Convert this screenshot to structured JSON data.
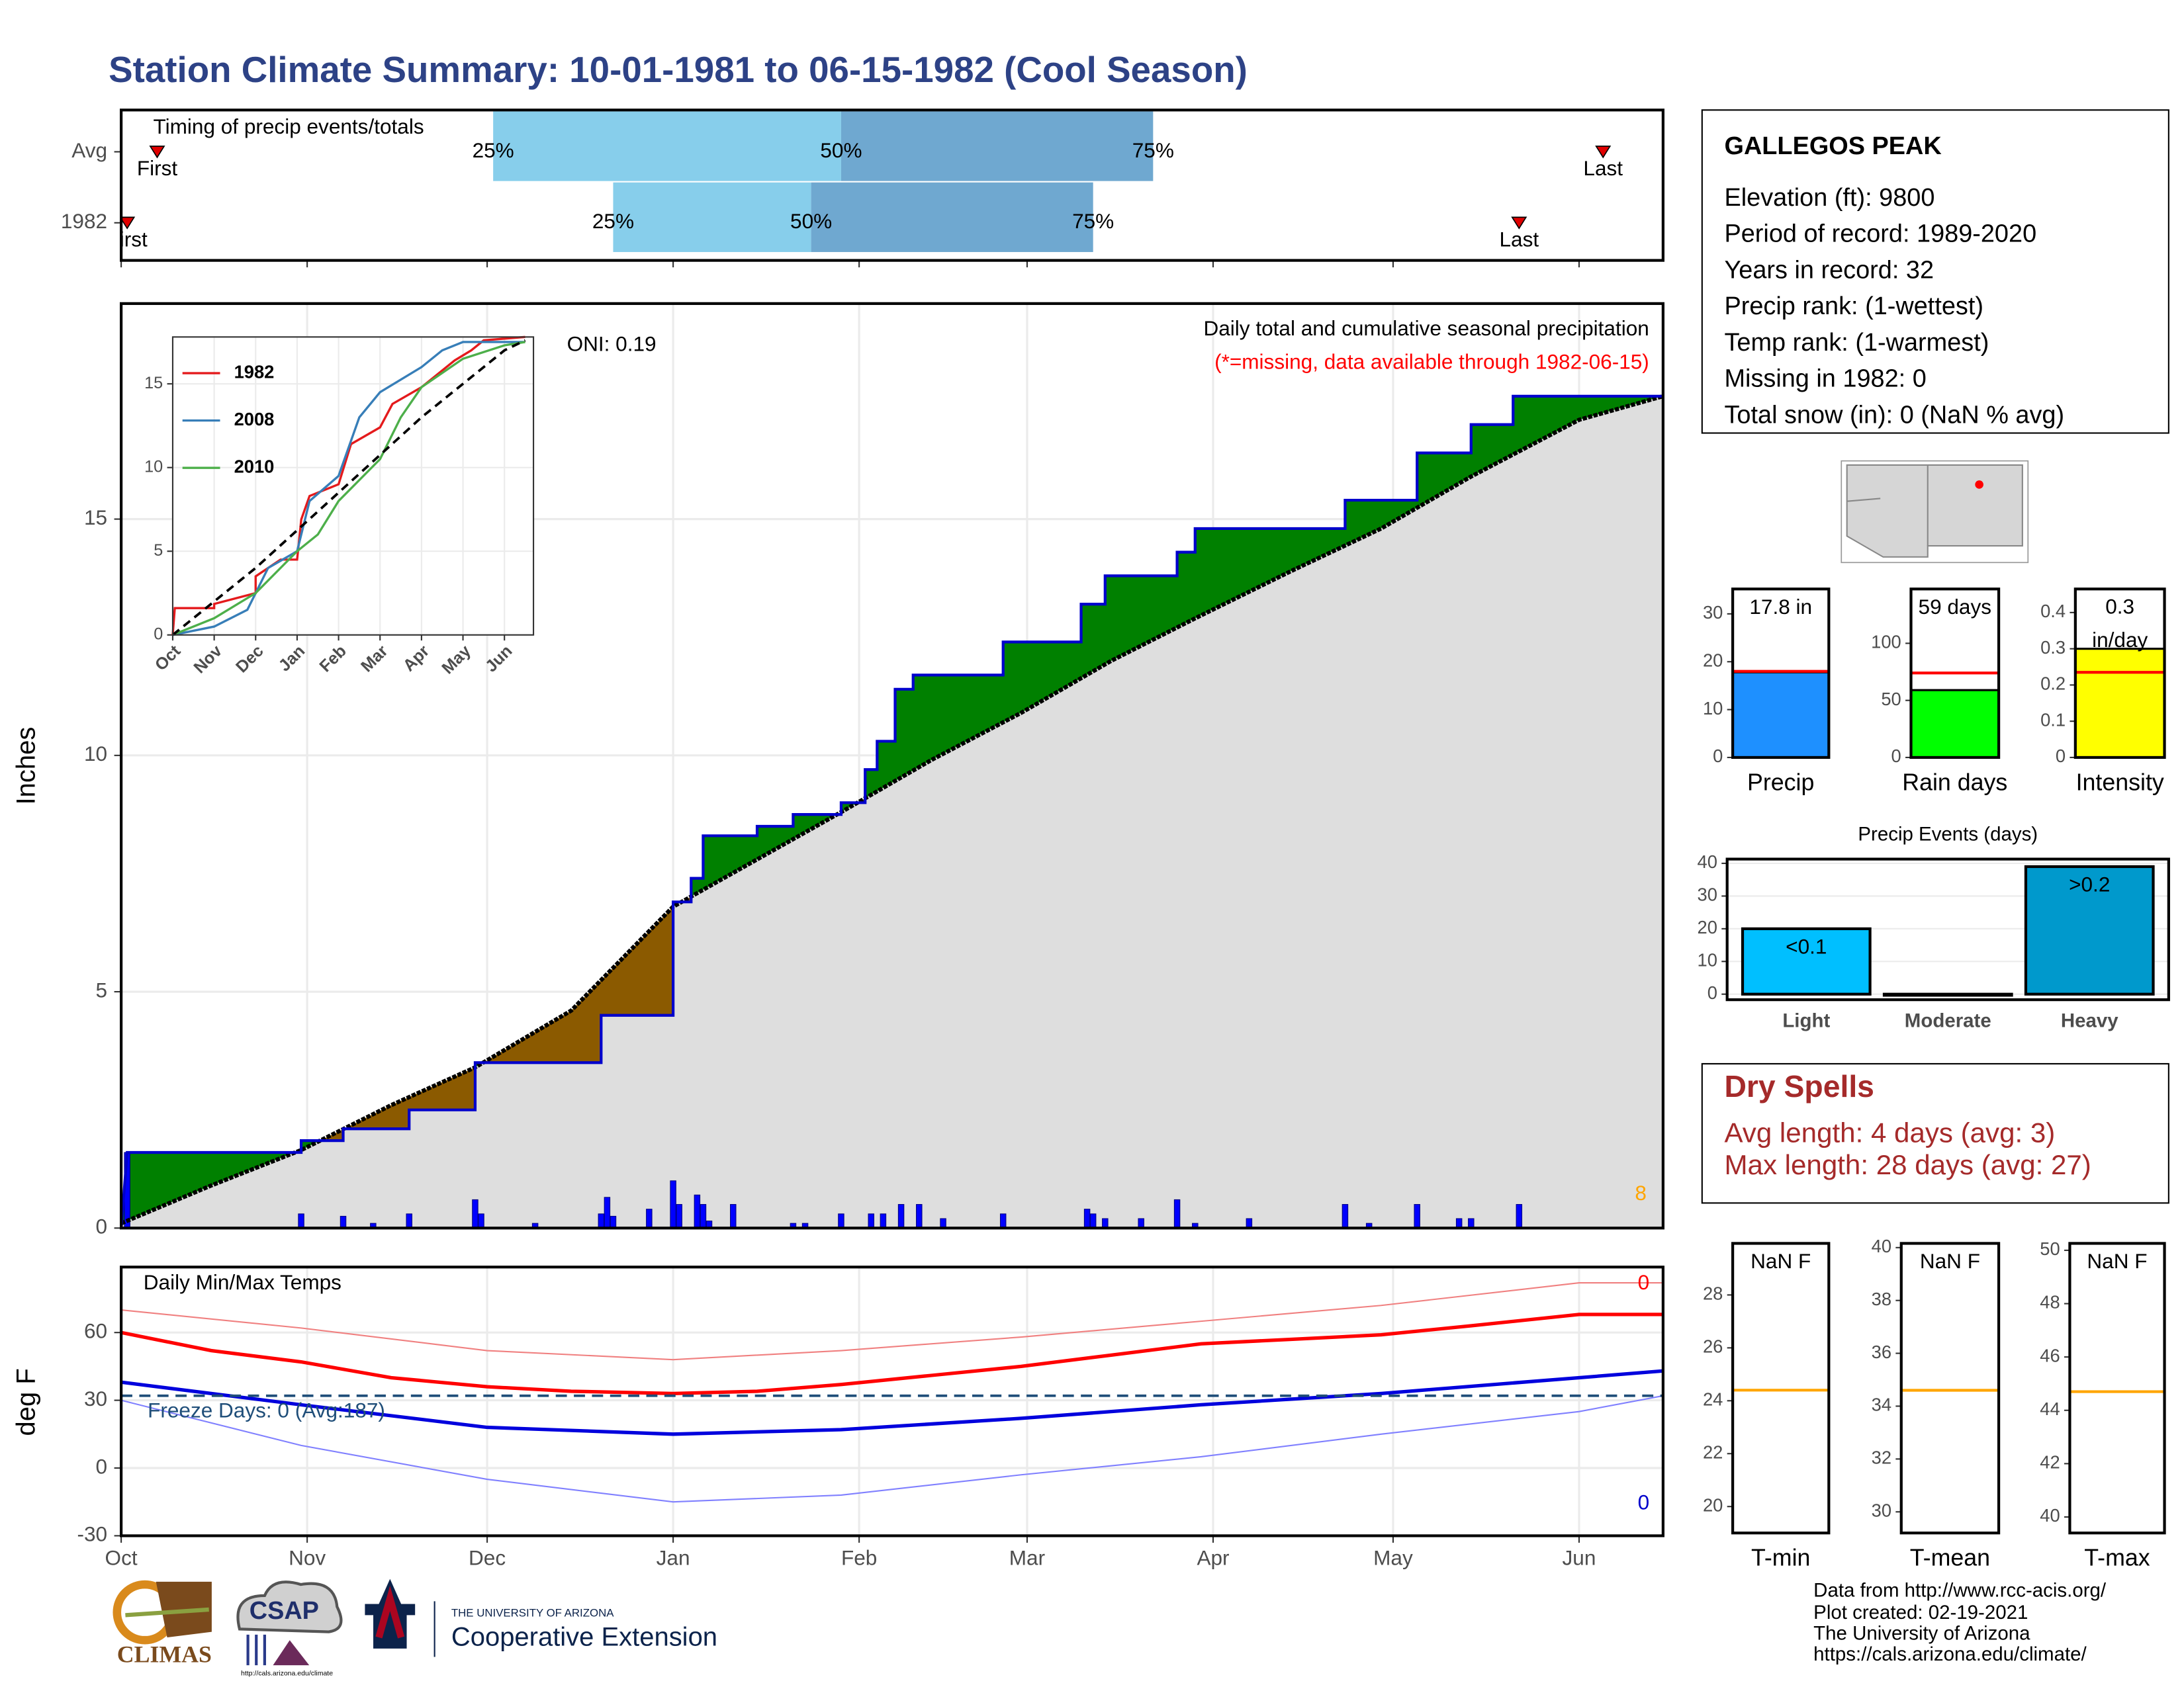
{
  "title": "Station Climate Summary: 10-01-1981 to 06-15-1982 (Cool Season)",
  "chart_data": [
    {
      "type": "timing",
      "title": "Timing of precip events/totals",
      "categories": [
        "Avg",
        "1982"
      ],
      "first": [
        6,
        1
      ],
      "q25": [
        62,
        82
      ],
      "q50": [
        120,
        115
      ],
      "q75": [
        172,
        162
      ],
      "last": [
        247,
        233
      ],
      "first_label": "First",
      "last_label": "Last",
      "quartile_labels": [
        "25%",
        "50%",
        "75%"
      ],
      "colors": [
        "#87ceeb",
        "#6fa8d0"
      ],
      "marker_color": "#e00000",
      "xlim": [
        0,
        257
      ]
    },
    {
      "type": "cumulative",
      "title": "Daily total and cumulative seasonal precipitation",
      "subtitle": "(*=missing, data available through 1982-06-15)",
      "annotation": "ONI: 0.19",
      "count_label": "8",
      "ylabel": "Inches",
      "xlim": [
        0,
        257
      ],
      "ylim": [
        0,
        19.56
      ],
      "yticks": [
        0,
        5,
        10,
        15
      ],
      "grid": true,
      "above_color": "#008000",
      "below_color": "#8b5a00",
      "fill_color": "#dedede",
      "series": [
        {
          "color": "#0000cc",
          "x": [
            0,
            1,
            30,
            30,
            37,
            37,
            48,
            48,
            59,
            59,
            80,
            80,
            92,
            92,
            95,
            95,
            97,
            97,
            106,
            106,
            112,
            112,
            120,
            120,
            124,
            124,
            126,
            126,
            129,
            129,
            132,
            132,
            147,
            147,
            160,
            160,
            164,
            164,
            176,
            176,
            179,
            179,
            204,
            204,
            216,
            216,
            225,
            225,
            232,
            232,
            257
          ],
          "values": [
            0,
            1.6,
            1.6,
            1.85,
            1.85,
            2.1,
            2.1,
            2.5,
            2.5,
            3.5,
            3.5,
            4.5,
            4.5,
            6.9,
            6.9,
            7.4,
            7.4,
            8.3,
            8.3,
            8.5,
            8.5,
            8.75,
            8.75,
            9.0,
            9.0,
            9.7,
            9.7,
            10.3,
            10.3,
            11.4,
            11.4,
            11.7,
            11.7,
            12.4,
            12.4,
            13.2,
            13.2,
            13.8,
            13.8,
            14.3,
            14.3,
            14.8,
            14.8,
            15.4,
            15.4,
            16.4,
            16.4,
            17.0,
            17.0,
            17.6,
            17.6
          ]
        },
        {
          "color": "#000000",
          "x": [
            0,
            15,
            30,
            45,
            59,
            75,
            92,
            106,
            120,
            135,
            150,
            165,
            179,
            195,
            210,
            225,
            243,
            257
          ],
          "values": [
            0.1,
            0.9,
            1.65,
            2.6,
            3.4,
            4.6,
            6.8,
            7.8,
            8.8,
            9.9,
            10.9,
            12.0,
            12.9,
            13.9,
            14.8,
            15.9,
            17.1,
            17.6
          ]
        }
      ],
      "bars": {
        "color": "#0000ff",
        "x": [
          1,
          30,
          37,
          42,
          48,
          59,
          60,
          69,
          80,
          81,
          82,
          88,
          92,
          93,
          96,
          97,
          98,
          102,
          112,
          114,
          120,
          125,
          127,
          130,
          133,
          137,
          147,
          161,
          162,
          164,
          170,
          176,
          179,
          188,
          204,
          208,
          216,
          223,
          225,
          233
        ],
        "values": [
          1.6,
          0.3,
          0.25,
          0.1,
          0.3,
          0.6,
          0.3,
          0.1,
          0.3,
          0.65,
          0.25,
          0.4,
          1.0,
          0.5,
          0.7,
          0.5,
          0.15,
          0.5,
          0.1,
          0.1,
          0.3,
          0.3,
          0.3,
          0.5,
          0.5,
          0.2,
          0.3,
          0.4,
          0.3,
          0.2,
          0.2,
          0.6,
          0.1,
          0.2,
          0.5,
          0.1,
          0.5,
          0.2,
          0.2,
          0.5
        ]
      }
    },
    {
      "type": "line",
      "xlim": [
        0,
        8.7
      ],
      "ylim": [
        0,
        17.8
      ],
      "yticks": [
        0,
        5,
        10,
        15
      ],
      "xticks": [
        {
          "value": 0,
          "label": "Oct"
        },
        {
          "value": 1,
          "label": "Nov"
        },
        {
          "value": 2,
          "label": "Dec"
        },
        {
          "value": 3,
          "label": "Jan"
        },
        {
          "value": 4,
          "label": "Feb"
        },
        {
          "value": 5,
          "label": "Mar"
        },
        {
          "value": 6,
          "label": "Apr"
        },
        {
          "value": 7,
          "label": "May"
        },
        {
          "value": 8,
          "label": "Jun"
        }
      ],
      "grid": true,
      "series": [
        {
          "name": "1982",
          "color": "#e41a1c",
          "x": [
            0,
            0.05,
            1,
            1,
            2,
            2,
            2.6,
            3,
            3.1,
            3.3,
            4,
            4.3,
            5,
            5.3,
            6,
            6.8,
            7.2,
            7.5,
            8.5
          ],
          "values": [
            0,
            1.6,
            1.6,
            1.85,
            2.5,
            3.5,
            4.5,
            4.5,
            6.9,
            8.3,
            9.0,
            11.4,
            12.4,
            13.8,
            14.8,
            16.4,
            17.0,
            17.6,
            17.8
          ]
        },
        {
          "name": "2008",
          "color": "#377eb8",
          "x": [
            0,
            1,
            1.8,
            2.3,
            3,
            3.3,
            4,
            4.5,
            5,
            6,
            6.5,
            7,
            8.5
          ],
          "values": [
            0,
            0.5,
            1.5,
            4,
            5,
            8,
            9.5,
            13,
            14.5,
            16,
            17,
            17.5,
            17.5
          ]
        },
        {
          "name": "2010",
          "color": "#4daf4a",
          "x": [
            0,
            1,
            2,
            3,
            3.5,
            4,
            5,
            5.5,
            6,
            7,
            8,
            8.5
          ],
          "values": [
            0,
            1,
            2.5,
            5,
            6,
            8,
            10.5,
            13,
            14.8,
            16.5,
            17.3,
            17.5
          ]
        },
        {
          "color": "#000000",
          "dash": true,
          "x": [
            0,
            2,
            4,
            6,
            8,
            8.5
          ],
          "values": [
            0,
            4,
            8.5,
            13,
            17,
            17.6
          ]
        }
      ]
    },
    {
      "type": "line",
      "title": "Daily Min/Max Temps",
      "ylabel": "deg F",
      "xlim": [
        0,
        257
      ],
      "ylim": [
        -30,
        89
      ],
      "yticks": [
        -30,
        0,
        30,
        60
      ],
      "grid": true,
      "xticks": [
        {
          "value": 0,
          "label": "Oct"
        },
        {
          "value": 31,
          "label": "Nov"
        },
        {
          "value": 61,
          "label": "Dec"
        },
        {
          "value": 92,
          "label": "Jan"
        },
        {
          "value": 123,
          "label": "Feb"
        },
        {
          "value": 151,
          "label": "Mar"
        },
        {
          "value": 182,
          "label": "Apr"
        },
        {
          "value": 212,
          "label": "May"
        },
        {
          "value": 243,
          "label": "Jun"
        }
      ],
      "threshold": 32,
      "threshold_color": "#1f4e79",
      "threshold_label": "Freeze Days: 0 (Avg:187)",
      "annotations": [
        {
          "text": "0",
          "color": "#ff0000"
        },
        {
          "text": "0",
          "color": "#0000cc"
        }
      ],
      "series": [
        {
          "color": "#f08080",
          "width": 1,
          "x": [
            0,
            30,
            61,
            92,
            120,
            150,
            180,
            210,
            243,
            257
          ],
          "values": [
            70,
            62,
            52,
            48,
            52,
            58,
            65,
            72,
            82,
            82
          ]
        },
        {
          "color": "#ff0000",
          "width": 2.5,
          "x": [
            0,
            15,
            30,
            45,
            61,
            75,
            92,
            106,
            120,
            135,
            150,
            165,
            180,
            195,
            210,
            225,
            243,
            257
          ],
          "values": [
            60,
            52,
            47,
            40,
            36,
            34,
            33,
            34,
            37,
            41,
            45,
            50,
            55,
            57,
            59,
            63,
            68,
            68
          ]
        },
        {
          "color": "#0000dd",
          "width": 2.5,
          "x": [
            0,
            30,
            61,
            92,
            120,
            150,
            180,
            210,
            243,
            257
          ],
          "values": [
            38,
            28,
            18,
            15,
            17,
            22,
            28,
            33,
            40,
            43
          ]
        },
        {
          "color": "#8080ff",
          "width": 1,
          "x": [
            0,
            30,
            61,
            92,
            120,
            150,
            180,
            210,
            243,
            257
          ],
          "values": [
            30,
            10,
            -5,
            -15,
            -12,
            -3,
            5,
            15,
            25,
            32
          ]
        }
      ]
    },
    {
      "type": "bar",
      "categories": [
        "Precip"
      ],
      "values": [
        17.8
      ],
      "value_labels": [
        "17.8 in"
      ],
      "avg": 18,
      "avg_color": "#ff0000",
      "color": "#1e90ff",
      "ylim": [
        0,
        35.2
      ],
      "yticks": [
        0,
        10,
        20,
        30
      ]
    },
    {
      "type": "bar",
      "categories": [
        "Rain days"
      ],
      "values": [
        59
      ],
      "value_labels": [
        "59 days"
      ],
      "avg": 74,
      "avg_color": "#ff0000",
      "color": "#00ff00",
      "ylim": [
        0,
        147.6
      ],
      "yticks": [
        0,
        50,
        100
      ]
    },
    {
      "type": "bar",
      "categories": [
        "Intensity"
      ],
      "values": [
        0.3
      ],
      "value_labels": [
        "0.3 in/day"
      ],
      "wrap": true,
      "avg": 0.235,
      "avg_color": "#ff0000",
      "color": "#ffff00",
      "ylim": [
        0,
        0.465
      ],
      "yticks": [
        0.0,
        0.1,
        0.2,
        0.3,
        0.4
      ]
    },
    {
      "type": "bar",
      "title": "Precip Events (days)",
      "categories": [
        "Light",
        "Moderate",
        "Heavy"
      ],
      "values": [
        20,
        0,
        39
      ],
      "bar_labels": [
        "<0.1",
        null,
        ">0.2"
      ],
      "colors": [
        "#00bfff",
        "#00bfff",
        "#0099cc"
      ],
      "ylim": [
        -1.7,
        41.3
      ],
      "yticks": [
        0,
        10,
        20,
        30,
        40
      ],
      "grid": true
    },
    {
      "type": "bar",
      "categories": [
        "T-min"
      ],
      "values": [
        null
      ],
      "value_labels": [
        "NaN F"
      ],
      "avg": 24.4,
      "avg_color": "#ffa500",
      "ylim": [
        19,
        29.95
      ],
      "yticks": [
        20,
        22,
        24,
        26,
        28
      ]
    },
    {
      "type": "bar",
      "categories": [
        "T-mean"
      ],
      "values": [
        null
      ],
      "value_labels": [
        "NaN F"
      ],
      "avg": 34.6,
      "avg_color": "#ffa500",
      "ylim": [
        29.2,
        40.16
      ],
      "yticks": [
        30,
        32,
        34,
        36,
        38,
        40
      ]
    },
    {
      "type": "bar",
      "categories": [
        "T-max"
      ],
      "values": [
        null
      ],
      "value_labels": [
        "NaN F"
      ],
      "avg": 44.7,
      "avg_color": "#ffa500",
      "ylim": [
        39.4,
        50.26
      ],
      "yticks": [
        40,
        42,
        44,
        46,
        48,
        50
      ]
    }
  ],
  "station": {
    "name": "GALLEGOS PEAK",
    "lines": [
      "Elevation (ft): 9800",
      "Period of record: 1989-2020",
      "Years in record: 32",
      "Precip rank:  (1-wettest)",
      "Temp rank:  (1-warmest)",
      "Missing in 1982: 0",
      "Total snow (in): 0 (NaN % avg)"
    ]
  },
  "dry_spells": {
    "title": "Dry Spells",
    "lines": [
      "Avg length: 4 days (avg: 3)",
      "Max length: 28 days (avg: 27)"
    ]
  },
  "footer": {
    "lines": [
      "Data from http://www.rcc-acis.org/",
      "Plot created: 02-19-2021",
      "The University of Arizona",
      "https://cals.arizona.edu/climate/"
    ]
  },
  "logos": {
    "climas": "CLIMAS",
    "csap": "CSAP",
    "csap_url": "http://cals.arizona.edu/climate",
    "ua_name": "THE UNIVERSITY OF ARIZONA",
    "ua_unit": "Cooperative Extension"
  }
}
